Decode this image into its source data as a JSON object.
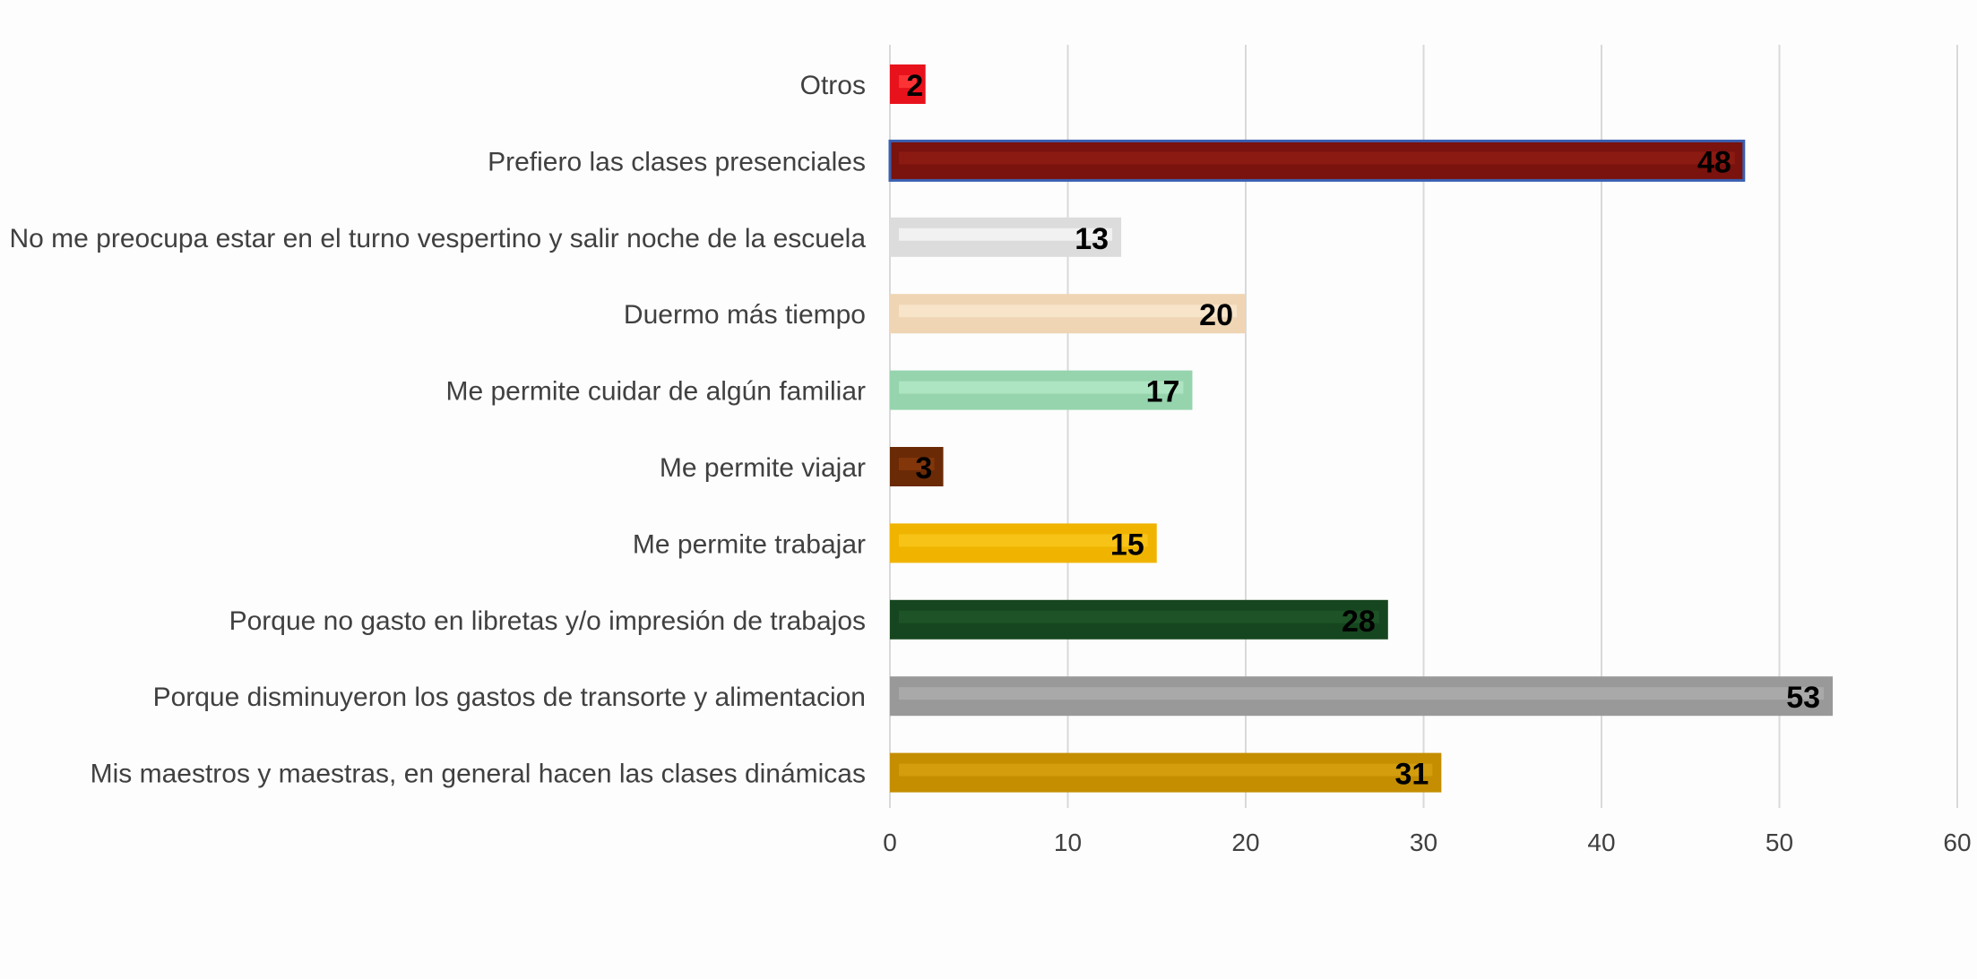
{
  "chart_data": {
    "type": "bar",
    "orientation": "horizontal",
    "title": "",
    "xlabel": "",
    "ylabel": "",
    "xlim": [
      0,
      60
    ],
    "xticks": [
      0,
      10,
      20,
      30,
      40,
      50,
      60
    ],
    "grid": true,
    "legend": "none",
    "categories": [
      "Otros",
      "Prefiero las clases presenciales",
      "No me preocupa estar en el turno vespertino y salir noche de la escuela",
      "Duermo más tiempo",
      "Me permite cuidar de algún familiar",
      "Me permite viajar",
      "Me permite trabajar",
      "Porque no gasto en libretas y/o impresión de trabajos",
      "Porque disminuyeron los gastos de transorte y alimentacion",
      "Mis maestros y maestras, en general hacen las clases dinámicas"
    ],
    "values": [
      2,
      48,
      13,
      20,
      17,
      3,
      15,
      28,
      53,
      31
    ],
    "colors": [
      "#e8121c",
      "#7a120d",
      "#dcdcdc",
      "#efd5b4",
      "#96d4ad",
      "#6b2a06",
      "#f0b400",
      "#16461f",
      "#999999",
      "#c48e00"
    ],
    "highlights": [
      "#ff3a3a",
      "#8e1c14",
      "#f4f4f4",
      "#f8e6cc",
      "#b2e6c4",
      "#86380c",
      "#f8c61a",
      "#1e5628",
      "#acacac",
      "#d6a010"
    ]
  }
}
